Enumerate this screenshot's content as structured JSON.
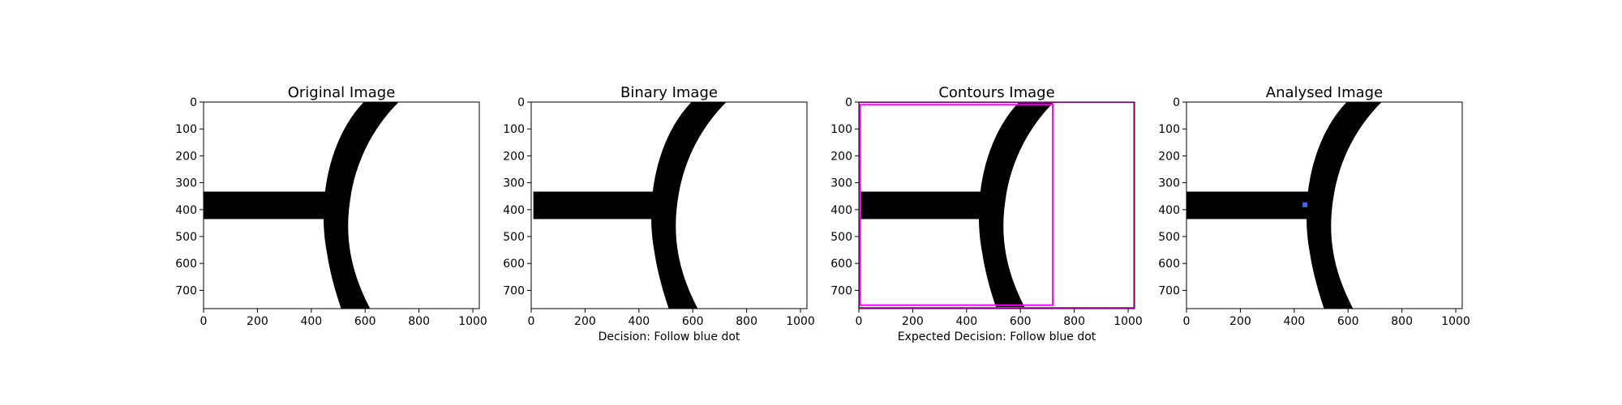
{
  "colors": {
    "foreground": "#000000",
    "background": "#ffffff",
    "contour_box": "#ff00ff",
    "blue_dot": "#4169e1"
  },
  "chart_data": [
    {
      "type": "image",
      "title": "Original Image",
      "xlabel": "",
      "xlim": [
        0,
        1024
      ],
      "ylim": [
        768,
        0
      ],
      "xticks": [
        "0",
        "200",
        "400",
        "600",
        "800",
        "1000"
      ],
      "yticks": [
        "0",
        "100",
        "200",
        "300",
        "400",
        "500",
        "600",
        "700"
      ],
      "show_stripe": true,
      "contour_boxes": [],
      "dot": null
    },
    {
      "type": "image",
      "title": "Binary Image",
      "xlabel": "Decision: Follow blue dot",
      "xlim": [
        0,
        1024
      ],
      "ylim": [
        768,
        0
      ],
      "xticks": [
        "0",
        "200",
        "400",
        "600",
        "800",
        "1000"
      ],
      "yticks": [
        "0",
        "100",
        "200",
        "300",
        "400",
        "500",
        "600",
        "700"
      ],
      "show_stripe": true,
      "contour_boxes": [],
      "dot": null
    },
    {
      "type": "image",
      "title": "Contours Image",
      "xlabel": "Expected Decision: Follow blue dot",
      "xlim": [
        0,
        1024
      ],
      "ylim": [
        768,
        0
      ],
      "xticks": [
        "0",
        "200",
        "400",
        "600",
        "800",
        "1000"
      ],
      "yticks": [
        "0",
        "100",
        "200",
        "300",
        "400",
        "500",
        "600",
        "700"
      ],
      "show_stripe": true,
      "contour_boxes": [
        {
          "x0": 5,
          "y0": 10,
          "x1": 720,
          "y1": 755
        },
        {
          "x0": 0,
          "y0": 0,
          "x1": 1022,
          "y1": 765
        }
      ],
      "dot": null
    },
    {
      "type": "image",
      "title": "Analysed Image",
      "xlabel": "",
      "xlim": [
        0,
        1024
      ],
      "ylim": [
        768,
        0
      ],
      "xticks": [
        "0",
        "200",
        "400",
        "600",
        "800",
        "1000"
      ],
      "yticks": [
        "0",
        "100",
        "200",
        "300",
        "400",
        "500",
        "600",
        "700"
      ],
      "show_stripe": true,
      "contour_boxes": [],
      "dot": {
        "x": 440,
        "y": 382
      }
    }
  ]
}
